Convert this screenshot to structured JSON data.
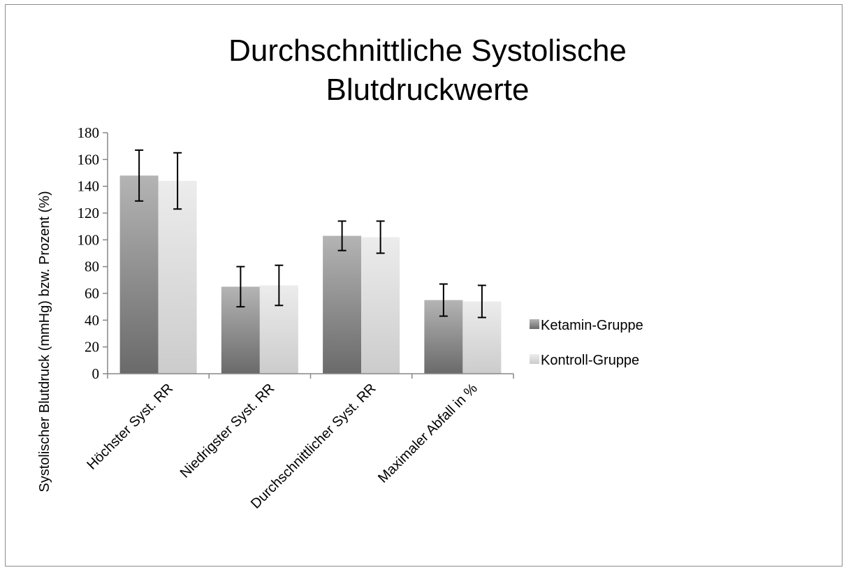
{
  "chart_data": {
    "type": "bar",
    "title_lines": [
      "Durchschnittliche Systolische",
      "Blutdruckwerte"
    ],
    "xlabel": "",
    "ylabel": "Systolischer Blutdruck (mmHg) bzw. Prozent (%)",
    "categories": [
      "Höchster Syst. RR",
      "Niedrigster Syst. RR",
      "Durchschnittlicher Syst. RR",
      "Maximaler Abfall in %"
    ],
    "series": [
      {
        "name": "Ketamin-Gruppe",
        "values": [
          148,
          65,
          103,
          55
        ],
        "error_low": [
          129,
          50,
          92,
          43
        ],
        "error_high": [
          167,
          80,
          114,
          67
        ],
        "color_light": "#b4b4b4",
        "color_dark": "#6a6a6a"
      },
      {
        "name": "Kontroll-Gruppe",
        "values": [
          144,
          66,
          102,
          54
        ],
        "error_low": [
          123,
          51,
          90,
          42
        ],
        "error_high": [
          165,
          81,
          114,
          66
        ],
        "color_light": "#ececec",
        "color_dark": "#cccccc"
      }
    ],
    "ylim": [
      0,
      180
    ],
    "yticks": [
      "0",
      "20",
      "40",
      "60",
      "80",
      "100",
      "120",
      "140",
      "160",
      "180"
    ],
    "grid": false,
    "legend_position": "right"
  }
}
